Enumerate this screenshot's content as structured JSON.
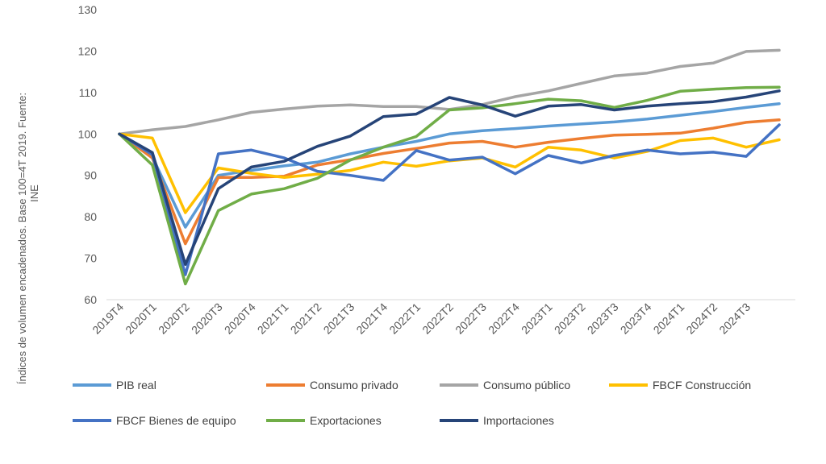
{
  "chart_data": {
    "type": "line",
    "title": "",
    "ylabel_lines": [
      "Índices de volumen encadenados. Base 100=4T 2019. Fuente:",
      "INE"
    ],
    "xlabel": "",
    "ylim": [
      60,
      130
    ],
    "yticks": [
      60,
      70,
      80,
      90,
      100,
      110,
      120,
      130
    ],
    "categories": [
      "2019T4",
      "2020T1",
      "2020T2",
      "2020T3",
      "2020T4",
      "2021T1",
      "2021T2",
      "2021T3",
      "2021T4",
      "2022T1",
      "2022T2",
      "2022T3",
      "2022T4",
      "2023T1",
      "2023T2",
      "2023T3",
      "2023T4",
      "2024T1",
      "2024T2",
      "2024T3",
      ""
    ],
    "series": [
      {
        "name": "PIB real",
        "color": "#5B9BD5",
        "values": [
          100,
          94.5,
          77.5,
          90,
          91.2,
          92.3,
          93.2,
          95.2,
          96.8,
          98.2,
          100,
          100.8,
          101.3,
          101.9,
          102.4,
          102.9,
          103.6,
          104.5,
          105.4,
          106.4,
          107.3
        ]
      },
      {
        "name": "Consumo privado",
        "color": "#ED7D31",
        "values": [
          100,
          94.2,
          73.5,
          89.5,
          89.5,
          89.8,
          92.5,
          93.8,
          95.3,
          96.5,
          97.8,
          98.2,
          96.8,
          98,
          98.9,
          99.7,
          99.9,
          100.2,
          101.4,
          102.8,
          103.4
        ]
      },
      {
        "name": "Consumo público",
        "color": "#A5A5A5",
        "values": [
          100,
          101,
          101.8,
          103.4,
          105.2,
          106,
          106.7,
          107,
          106.6,
          106.6,
          105.9,
          107.1,
          109,
          110.4,
          112.2,
          114,
          114.7,
          116.3,
          117.1,
          119.9,
          120.2
        ]
      },
      {
        "name": "FBCF Construcción",
        "color": "#FFC000",
        "values": [
          100,
          99,
          81,
          91.8,
          90.5,
          89.5,
          90.3,
          91.2,
          93.2,
          92.2,
          93.5,
          94.2,
          92,
          96.8,
          96.1,
          94.2,
          95.8,
          98.4,
          99,
          96.8,
          98.6
        ]
      },
      {
        "name": "FBCF Bienes de equipo",
        "color": "#4472C4",
        "values": [
          100,
          95,
          66,
          95.2,
          96.1,
          94.2,
          91,
          90,
          88.8,
          96,
          93.7,
          94.4,
          90.4,
          94.8,
          93,
          94.8,
          96.1,
          95.2,
          95.6,
          94.6,
          102.2
        ]
      },
      {
        "name": "Exportaciones",
        "color": "#70AD47",
        "values": [
          100,
          92.5,
          63.8,
          81.5,
          85.5,
          86.8,
          89.3,
          93.7,
          96.8,
          99.4,
          105.8,
          106.3,
          107.3,
          108.4,
          108,
          106.4,
          108.1,
          110.3,
          110.8,
          111.2,
          111.3
        ]
      },
      {
        "name": "Importaciones",
        "color": "#264478",
        "values": [
          100,
          95.5,
          68.5,
          86.8,
          92,
          93.4,
          97,
          99.5,
          104.2,
          104.8,
          108.8,
          107,
          104.3,
          106.7,
          107.1,
          105.8,
          106.7,
          107.3,
          107.8,
          108.9,
          110.4
        ]
      }
    ],
    "legend_position": "bottom",
    "grid": false
  }
}
